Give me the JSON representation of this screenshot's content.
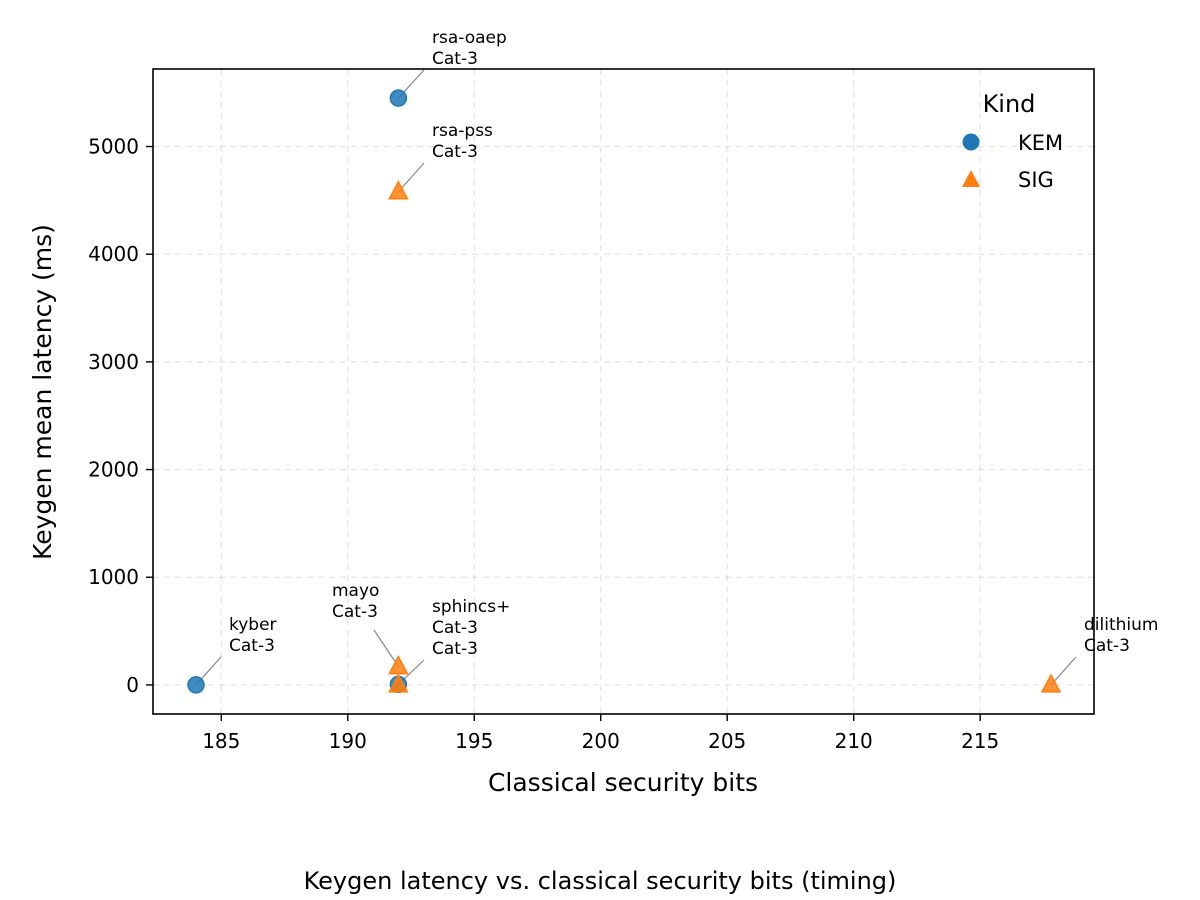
{
  "chart_data": {
    "type": "scatter",
    "title": "",
    "caption": "Keygen latency vs. classical security bits (timing)",
    "xlabel": "Classical security bits",
    "ylabel": "Keygen mean latency (ms)",
    "xlim": [
      182.3,
      219.5
    ],
    "ylim": [
      -270,
      5720
    ],
    "xticks": [
      185,
      190,
      195,
      200,
      205,
      210,
      215
    ],
    "yticks": [
      0,
      1000,
      2000,
      3000,
      4000,
      5000
    ],
    "grid": true,
    "legend": {
      "title": "Kind",
      "placement": "top-right"
    },
    "colors": {
      "KEM": "#1f77b4",
      "SIG": "#ff7f0e"
    },
    "series": [
      {
        "name": "KEM",
        "marker": "circle",
        "points": [
          {
            "x": 184,
            "y": 0,
            "label": "kyber",
            "cat": "Cat-3"
          },
          {
            "x": 192,
            "y": 5450,
            "label": "rsa-oaep",
            "cat": "Cat-3"
          },
          {
            "x": 192,
            "y": 5,
            "label": "",
            "cat": ""
          }
        ]
      },
      {
        "name": "SIG",
        "marker": "triangle",
        "points": [
          {
            "x": 192,
            "y": 4580,
            "label": "rsa-pss",
            "cat": "Cat-3"
          },
          {
            "x": 192,
            "y": 170,
            "label": "mayo",
            "cat": "Cat-3"
          },
          {
            "x": 192,
            "y": 0,
            "label": "sphincs+",
            "cat": "Cat-3"
          },
          {
            "x": 217.8,
            "y": 0,
            "label": "dilithium",
            "cat": "Cat-3"
          }
        ]
      }
    ],
    "annotations": [
      {
        "line1": "rsa-oaep",
        "line2": "Cat-3",
        "point_x": 192,
        "point_y": 5450
      },
      {
        "line1": "rsa-pss",
        "line2": "Cat-3",
        "point_x": 192,
        "point_y": 4580
      },
      {
        "line1": "kyber",
        "line2": "Cat-3",
        "point_x": 184,
        "point_y": 0
      },
      {
        "line1": "mayo",
        "line2": "Cat-3",
        "point_x": 192,
        "point_y": 170
      },
      {
        "line1": "sphincs+",
        "line2": "Cat-3",
        "line3": "Cat-3",
        "point_x": 192,
        "point_y": 5
      },
      {
        "line1": "dilithium",
        "line2": "Cat-3",
        "point_x": 217.8,
        "point_y": 0
      }
    ]
  }
}
